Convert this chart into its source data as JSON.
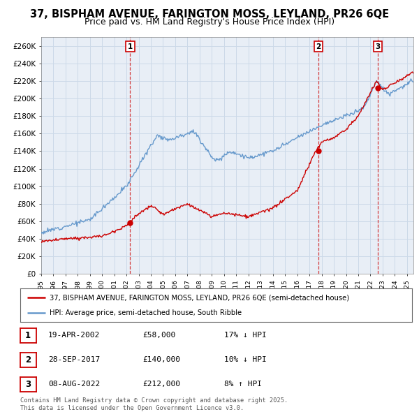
{
  "title": "37, BISPHAM AVENUE, FARINGTON MOSS, LEYLAND, PR26 6QE",
  "subtitle": "Price paid vs. HM Land Registry's House Price Index (HPI)",
  "line1_color": "#cc0000",
  "line2_color": "#6699cc",
  "background_color": "#ffffff",
  "grid_color": "#ccd9e8",
  "chart_bg": "#e8eef6",
  "ylim": [
    0,
    270000
  ],
  "yticks": [
    0,
    20000,
    40000,
    60000,
    80000,
    100000,
    120000,
    140000,
    160000,
    180000,
    200000,
    220000,
    240000,
    260000
  ],
  "ytick_labels": [
    "£0",
    "£20K",
    "£40K",
    "£60K",
    "£80K",
    "£100K",
    "£120K",
    "£140K",
    "£160K",
    "£180K",
    "£200K",
    "£220K",
    "£240K",
    "£260K"
  ],
  "transactions": [
    {
      "num": 1,
      "date_x": 2002.3,
      "price": 58000,
      "label": "19-APR-2002",
      "price_str": "£58,000",
      "hpi_str": "17% ↓ HPI"
    },
    {
      "num": 2,
      "date_x": 2017.74,
      "price": 140000,
      "label": "28-SEP-2017",
      "price_str": "£140,000",
      "hpi_str": "10% ↓ HPI"
    },
    {
      "num": 3,
      "date_x": 2022.6,
      "price": 212000,
      "label": "08-AUG-2022",
      "price_str": "£212,000",
      "hpi_str": "8% ↑ HPI"
    }
  ],
  "legend_line1": "37, BISPHAM AVENUE, FARINGTON MOSS, LEYLAND, PR26 6QE (semi-detached house)",
  "legend_line2": "HPI: Average price, semi-detached house, South Ribble",
  "footer": "Contains HM Land Registry data © Crown copyright and database right 2025.\nThis data is licensed under the Open Government Licence v3.0.",
  "xmin": 1995.0,
  "xmax": 2025.5
}
